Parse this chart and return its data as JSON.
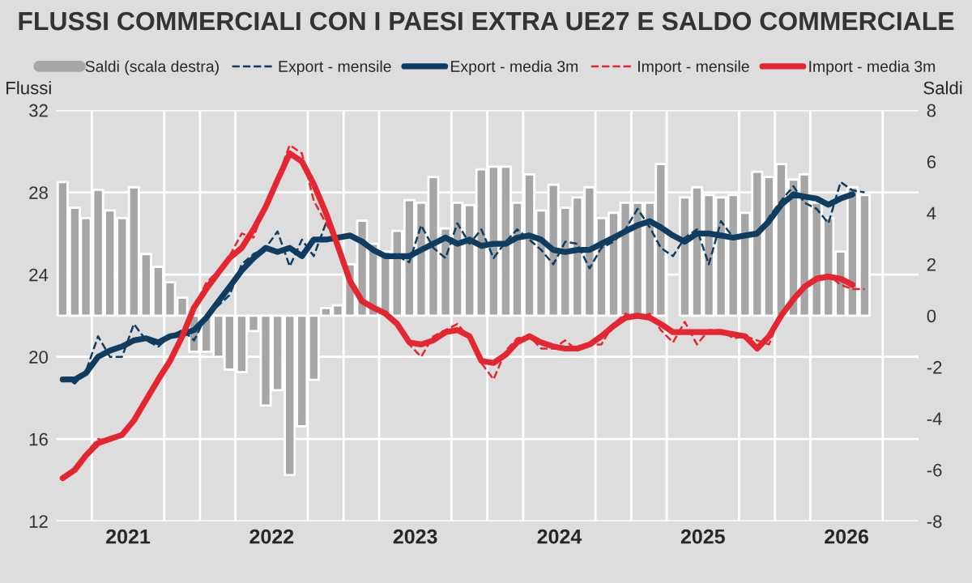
{
  "chart_data": {
    "type": "line",
    "title": "FLUSSI COMMERCIALI CON I PAESI EXTRA UE27 E SALDO COMMERCIALE",
    "ylabel": "Flussi",
    "y2label": "Saldi",
    "x": [
      "2021-01",
      "2021-02",
      "2021-03",
      "2021-04",
      "2021-05",
      "2021-06",
      "2021-07",
      "2021-08",
      "2021-09",
      "2021-10",
      "2021-11",
      "2021-12",
      "2022-01",
      "2022-02",
      "2022-03",
      "2022-04",
      "2022-05",
      "2022-06",
      "2022-07",
      "2022-08",
      "2022-09",
      "2022-10",
      "2022-11",
      "2022-12",
      "2023-01",
      "2023-02",
      "2023-03",
      "2023-04",
      "2023-05",
      "2023-06",
      "2023-07",
      "2023-08",
      "2023-09",
      "2023-10",
      "2023-11",
      "2023-12",
      "2024-01",
      "2024-02",
      "2024-03",
      "2024-04",
      "2024-05",
      "2024-06",
      "2024-07",
      "2024-08",
      "2024-09",
      "2024-10",
      "2024-11",
      "2024-12",
      "2025-01",
      "2025-02",
      "2025-03",
      "2025-04",
      "2025-05",
      "2025-06",
      "2025-07",
      "2025-08",
      "2025-09",
      "2025-10",
      "2025-11",
      "2025-12",
      "2026-01",
      "2026-02",
      "2026-03",
      "2026-04",
      "2026-05",
      "2026-06",
      "2026-07",
      "2026-08"
    ],
    "series": [
      {
        "name": "Saldi (scala destra)",
        "type": "bar",
        "axis": "y2",
        "color": "#a6a6a6",
        "values": [
          5.2,
          4.2,
          3.8,
          4.9,
          4.1,
          3.8,
          5.0,
          2.4,
          1.9,
          1.3,
          0.7,
          -1.4,
          -1.4,
          -1.6,
          -2.1,
          -2.2,
          -0.6,
          -3.5,
          -2.9,
          -6.2,
          -4.3,
          -2.5,
          0.3,
          0.4,
          2.0,
          3.7,
          2.8,
          2.5,
          3.3,
          4.5,
          4.4,
          5.4,
          3.4,
          4.4,
          4.3,
          5.7,
          5.8,
          5.8,
          4.4,
          5.5,
          4.1,
          5.1,
          4.2,
          4.6,
          5.0,
          3.8,
          4.0,
          4.4,
          4.4,
          4.4,
          5.9,
          null,
          4.6,
          5.0,
          4.7,
          4.6,
          4.7,
          4.0,
          5.6,
          5.4,
          5.9,
          5.3,
          5.5,
          4.4,
          3.8,
          2.5,
          5.0,
          4.7
        ]
      },
      {
        "name": "Export - mensile",
        "line_style": "dashed",
        "color": "#0e3d61",
        "values": [
          19.0,
          18.7,
          19.3,
          21.0,
          20.0,
          20.0,
          21.6,
          20.8,
          20.5,
          21.0,
          21.3,
          20.8,
          22.0,
          22.5,
          23.0,
          24.5,
          25.0,
          25.3,
          26.1,
          24.4,
          25.7,
          24.9,
          26.5,
          25.7,
          26.0,
          25.7,
          25.3,
          24.9,
          24.9,
          24.6,
          26.4,
          25.3,
          24.8,
          26.5,
          25.5,
          26.2,
          24.8,
          25.6,
          26.2,
          25.7,
          25.2,
          24.5,
          25.6,
          25.5,
          24.3,
          25.3,
          25.6,
          26.2,
          27.2,
          26.3,
          25.3,
          24.9,
          25.8,
          26.2,
          24.5,
          26.6,
          25.8,
          25.9,
          25.9,
          26.8,
          27.6,
          28.3,
          27.5,
          27.2,
          26.5,
          28.5,
          28.1,
          28.0
        ]
      },
      {
        "name": "Export - media 3m",
        "line_style": "solid",
        "color": "#0e3d61",
        "values": [
          18.9,
          18.9,
          19.2,
          20.0,
          20.3,
          20.5,
          20.8,
          20.9,
          20.7,
          21.0,
          21.1,
          21.3,
          21.9,
          22.7,
          23.4,
          24.2,
          24.8,
          25.3,
          25.1,
          25.3,
          24.9,
          25.7,
          25.7,
          25.8,
          25.9,
          25.6,
          25.2,
          24.9,
          24.9,
          24.9,
          25.2,
          25.5,
          25.8,
          25.5,
          25.7,
          25.4,
          25.5,
          25.5,
          25.8,
          25.9,
          25.7,
          25.2,
          25.1,
          25.2,
          25.2,
          25.5,
          25.8,
          26.1,
          26.4,
          26.6,
          26.3,
          25.9,
          25.6,
          26.0,
          26.0,
          25.9,
          25.8,
          25.9,
          26.0,
          26.6,
          27.4,
          27.9,
          27.8,
          27.7,
          27.4,
          27.7,
          27.9,
          null
        ]
      },
      {
        "name": "Import - mensile",
        "line_style": "dashed",
        "color": "#e3262f",
        "values": [
          14.0,
          14.6,
          15.3,
          16.0,
          15.9,
          16.3,
          17.0,
          17.8,
          18.9,
          19.8,
          21.0,
          22.4,
          23.6,
          24.2,
          24.9,
          26.0,
          25.8,
          27.5,
          28.7,
          30.3,
          29.9,
          27.6,
          26.5,
          25.5,
          23.5,
          22.8,
          22.4,
          22.2,
          21.5,
          20.6,
          20.0,
          21.0,
          21.3,
          21.6,
          20.9,
          19.7,
          18.9,
          20.3,
          20.9,
          21.0,
          20.4,
          20.4,
          20.8,
          20.3,
          20.6,
          20.6,
          21.6,
          22.1,
          21.9,
          22.1,
          21.3,
          20.7,
          21.7,
          20.6,
          21.3,
          21.3,
          20.9,
          21.0,
          20.8,
          20.6,
          22.1,
          22.7,
          23.5,
          23.9,
          24.0,
          23.5,
          23.3,
          23.3
        ]
      },
      {
        "name": "Import - media 3m",
        "line_style": "solid",
        "color": "#e3262f",
        "values": [
          14.1,
          14.5,
          15.2,
          15.8,
          16.0,
          16.2,
          16.9,
          17.9,
          18.9,
          19.8,
          21.0,
          22.4,
          23.3,
          24.1,
          24.8,
          25.3,
          26.2,
          27.3,
          28.6,
          29.9,
          29.5,
          28.4,
          27.0,
          25.4,
          23.7,
          22.7,
          22.4,
          22.1,
          21.6,
          20.7,
          20.6,
          20.8,
          21.2,
          21.3,
          21.0,
          19.8,
          19.7,
          20.1,
          20.7,
          21.0,
          20.7,
          20.5,
          20.4,
          20.4,
          20.6,
          21.0,
          21.5,
          21.9,
          22.0,
          21.9,
          21.6,
          21.2,
          21.2,
          21.2,
          21.2,
          21.2,
          21.1,
          21.0,
          20.4,
          21.0,
          22.0,
          22.8,
          23.4,
          23.8,
          23.9,
          23.8,
          23.5,
          null
        ]
      }
    ],
    "xlim": [
      "2020-12-16",
      "2026-12-16"
    ],
    "xticks": [
      {
        "value": "2021-03-16",
        "label": null
      },
      {
        "value": "2021-06-16",
        "label": "2021"
      },
      {
        "value": "2021-09-16",
        "label": null
      },
      {
        "value": "2021-12-16",
        "label": null
      },
      {
        "value": "2022-03-16",
        "label": null
      },
      {
        "value": "2022-06-16",
        "label": "2022"
      },
      {
        "value": "2022-09-16",
        "label": null
      },
      {
        "value": "2022-12-16",
        "label": null
      },
      {
        "value": "2023-03-16",
        "label": null
      },
      {
        "value": "2023-06-16",
        "label": "2023"
      },
      {
        "value": "2023-09-16",
        "label": null
      },
      {
        "value": "2023-12-16",
        "label": null
      },
      {
        "value": "2024-03-16",
        "label": null
      },
      {
        "value": "2024-06-16",
        "label": "2024"
      },
      {
        "value": "2024-09-16",
        "label": null
      },
      {
        "value": "2024-12-16",
        "label": null
      },
      {
        "value": "2025-03-16",
        "label": null
      },
      {
        "value": "2025-06-16",
        "label": "2025"
      },
      {
        "value": "2025-09-16",
        "label": null
      },
      {
        "value": "2025-12-16",
        "label": null
      },
      {
        "value": "2026-03-16",
        "label": null
      },
      {
        "value": "2026-06-16",
        "label": "2026"
      },
      {
        "value": "2026-09-16",
        "label": null
      }
    ],
    "ylim": [
      12,
      32
    ],
    "yticks": [
      12,
      16,
      20,
      24,
      28,
      32
    ],
    "y2lim": [
      -8,
      8
    ],
    "y2ticks": [
      -8,
      -6,
      -4,
      -2,
      0,
      2,
      4,
      6,
      8
    ],
    "grid": true,
    "legend": "top"
  }
}
